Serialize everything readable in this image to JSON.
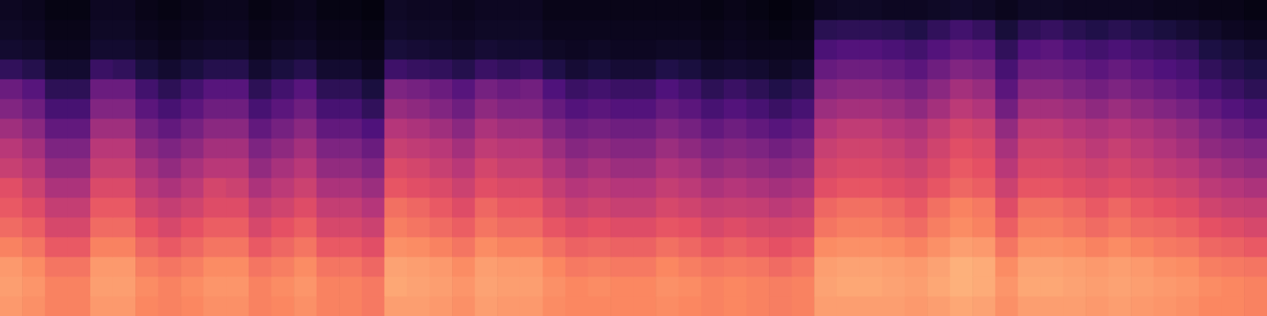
{
  "chart_data": {
    "type": "heatmap",
    "tick_labels": false,
    "grid": false,
    "zlim": [
      0,
      100
    ],
    "cells": [
      [
        6,
        5,
        3,
        3,
        6,
        6,
        4,
        3,
        4,
        5,
        5,
        3,
        4,
        5,
        3,
        3,
        2,
        7,
        6,
        6,
        5,
        6,
        6,
        6,
        4,
        4,
        4,
        4,
        4,
        4,
        4,
        3,
        4,
        3,
        2,
        3,
        6,
        7,
        7,
        6,
        6,
        7,
        8,
        7,
        5,
        7,
        7,
        6,
        6,
        6,
        6,
        5,
        5,
        4,
        4,
        3
      ],
      [
        7,
        6,
        4,
        4,
        7,
        7,
        5,
        4,
        5,
        6,
        6,
        4,
        5,
        6,
        4,
        4,
        3,
        8,
        7,
        7,
        6,
        7,
        7,
        7,
        5,
        5,
        5,
        5,
        5,
        5,
        5,
        4,
        5,
        4,
        3,
        4,
        16,
        17,
        17,
        16,
        14,
        18,
        22,
        19,
        11,
        17,
        19,
        16,
        14,
        16,
        14,
        12,
        10,
        8,
        6,
        5
      ],
      [
        9,
        8,
        5,
        5,
        9,
        9,
        7,
        5,
        7,
        8,
        8,
        5,
        7,
        8,
        5,
        5,
        4,
        11,
        10,
        9,
        8,
        10,
        9,
        9,
        7,
        6,
        7,
        6,
        6,
        7,
        7,
        5,
        6,
        5,
        5,
        5,
        24,
        26,
        26,
        24,
        22,
        26,
        30,
        28,
        18,
        26,
        28,
        24,
        22,
        24,
        22,
        20,
        18,
        13,
        11,
        9
      ],
      [
        18,
        15,
        9,
        9,
        20,
        18,
        12,
        9,
        12,
        15,
        15,
        9,
        12,
        15,
        9,
        9,
        6,
        21,
        19,
        18,
        15,
        20,
        18,
        20,
        14,
        10,
        12,
        10,
        10,
        14,
        12,
        9,
        10,
        9,
        7,
        9,
        31,
        33,
        33,
        31,
        28,
        33,
        38,
        36,
        23,
        33,
        33,
        31,
        28,
        31,
        28,
        25,
        23,
        18,
        15,
        13
      ],
      [
        32,
        27,
        17,
        17,
        32,
        32,
        22,
        17,
        22,
        27,
        27,
        17,
        22,
        27,
        17,
        17,
        12,
        37,
        35,
        32,
        27,
        35,
        32,
        34,
        25,
        20,
        22,
        20,
        20,
        25,
        22,
        17,
        20,
        17,
        14,
        17,
        38,
        40,
        40,
        38,
        35,
        40,
        46,
        43,
        28,
        40,
        40,
        37,
        34,
        37,
        34,
        31,
        28,
        23,
        20,
        17
      ],
      [
        38,
        33,
        23,
        23,
        38,
        38,
        28,
        23,
        28,
        33,
        33,
        23,
        28,
        33,
        23,
        23,
        18,
        43,
        41,
        38,
        33,
        41,
        38,
        38,
        31,
        26,
        28,
        26,
        26,
        31,
        28,
        23,
        26,
        23,
        20,
        23,
        44,
        46,
        46,
        44,
        41,
        46,
        52,
        49,
        34,
        46,
        46,
        44,
        41,
        44,
        41,
        38,
        35,
        30,
        26,
        23
      ],
      [
        45,
        40,
        30,
        30,
        45,
        45,
        35,
        30,
        35,
        40,
        40,
        30,
        35,
        40,
        30,
        30,
        25,
        50,
        48,
        45,
        40,
        48,
        45,
        45,
        38,
        33,
        35,
        33,
        33,
        38,
        35,
        30,
        33,
        30,
        27,
        30,
        50,
        53,
        53,
        50,
        48,
        53,
        58,
        56,
        42,
        53,
        53,
        50,
        48,
        50,
        48,
        45,
        42,
        37,
        33,
        30
      ],
      [
        51,
        46,
        37,
        37,
        51,
        51,
        41,
        37,
        41,
        46,
        46,
        37,
        41,
        46,
        37,
        37,
        32,
        55,
        53,
        51,
        46,
        53,
        51,
        51,
        44,
        39,
        41,
        39,
        39,
        44,
        41,
        37,
        39,
        37,
        34,
        37,
        55,
        57,
        57,
        55,
        52,
        57,
        62,
        60,
        47,
        57,
        57,
        55,
        52,
        55,
        52,
        49,
        46,
        41,
        39,
        37
      ],
      [
        55,
        51,
        42,
        42,
        55,
        55,
        47,
        42,
        47,
        51,
        51,
        42,
        47,
        51,
        42,
        42,
        38,
        60,
        58,
        55,
        51,
        58,
        55,
        55,
        49,
        44,
        47,
        44,
        44,
        49,
        47,
        42,
        44,
        42,
        40,
        42,
        58,
        60,
        60,
        58,
        56,
        60,
        65,
        63,
        51,
        60,
        60,
        58,
        56,
        58,
        56,
        53,
        51,
        47,
        44,
        42
      ],
      [
        62,
        56,
        48,
        48,
        60,
        60,
        52,
        48,
        52,
        58,
        56,
        48,
        52,
        56,
        48,
        48,
        44,
        64,
        62,
        60,
        56,
        62,
        60,
        60,
        54,
        50,
        52,
        50,
        50,
        54,
        52,
        48,
        50,
        48,
        46,
        48,
        62,
        64,
        64,
        62,
        60,
        64,
        68,
        66,
        56,
        64,
        64,
        62,
        60,
        62,
        60,
        58,
        56,
        52,
        50,
        48
      ],
      [
        65,
        61,
        54,
        54,
        65,
        65,
        57,
        54,
        57,
        61,
        61,
        54,
        57,
        61,
        54,
        54,
        50,
        70,
        68,
        65,
        61,
        68,
        65,
        65,
        59,
        55,
        57,
        55,
        55,
        59,
        57,
        54,
        55,
        54,
        52,
        54,
        68,
        70,
        70,
        68,
        65,
        70,
        74,
        72,
        61,
        70,
        70,
        68,
        65,
        68,
        65,
        63,
        61,
        57,
        55,
        54
      ],
      [
        69,
        66,
        59,
        59,
        69,
        69,
        63,
        59,
        63,
        66,
        66,
        59,
        63,
        66,
        59,
        59,
        56,
        73,
        71,
        69,
        66,
        71,
        69,
        69,
        64,
        61,
        63,
        61,
        61,
        64,
        63,
        59,
        61,
        59,
        58,
        59,
        71,
        73,
        73,
        71,
        69,
        73,
        76,
        74,
        66,
        73,
        73,
        71,
        69,
        71,
        69,
        68,
        66,
        63,
        61,
        59
      ],
      [
        74,
        71,
        65,
        65,
        74,
        74,
        68,
        65,
        68,
        71,
        71,
        65,
        68,
        71,
        65,
        65,
        62,
        77,
        76,
        74,
        71,
        76,
        74,
        74,
        70,
        67,
        68,
        67,
        67,
        70,
        68,
        65,
        67,
        65,
        63,
        65,
        76,
        77,
        77,
        76,
        74,
        77,
        80,
        79,
        71,
        77,
        77,
        76,
        74,
        76,
        74,
        72,
        71,
        68,
        67,
        65
      ],
      [
        79,
        76,
        71,
        71,
        79,
        79,
        73,
        71,
        73,
        76,
        76,
        71,
        73,
        76,
        71,
        71,
        68,
        81,
        80,
        79,
        76,
        80,
        79,
        79,
        75,
        72,
        73,
        72,
        72,
        75,
        73,
        71,
        72,
        71,
        69,
        71,
        80,
        81,
        81,
        80,
        79,
        81,
        84,
        83,
        76,
        81,
        81,
        80,
        79,
        80,
        79,
        77,
        76,
        73,
        72,
        71
      ],
      [
        80,
        78,
        74,
        74,
        80,
        80,
        76,
        74,
        76,
        78,
        78,
        74,
        76,
        78,
        74,
        74,
        72,
        82,
        81,
        80,
        78,
        81,
        80,
        80,
        77,
        75,
        76,
        75,
        75,
        77,
        76,
        74,
        75,
        74,
        73,
        74,
        81,
        82,
        82,
        81,
        80,
        82,
        84,
        83,
        78,
        82,
        82,
        81,
        80,
        81,
        80,
        79,
        78,
        76,
        75,
        74
      ],
      [
        79,
        77,
        74,
        74,
        79,
        79,
        75,
        74,
        75,
        77,
        77,
        74,
        75,
        77,
        74,
        74,
        72,
        80,
        80,
        79,
        77,
        80,
        79,
        79,
        76,
        75,
        75,
        75,
        75,
        76,
        75,
        74,
        75,
        74,
        73,
        74,
        80,
        80,
        80,
        80,
        79,
        80,
        82,
        81,
        77,
        80,
        80,
        80,
        79,
        80,
        79,
        78,
        77,
        75,
        75,
        74
      ]
    ]
  }
}
